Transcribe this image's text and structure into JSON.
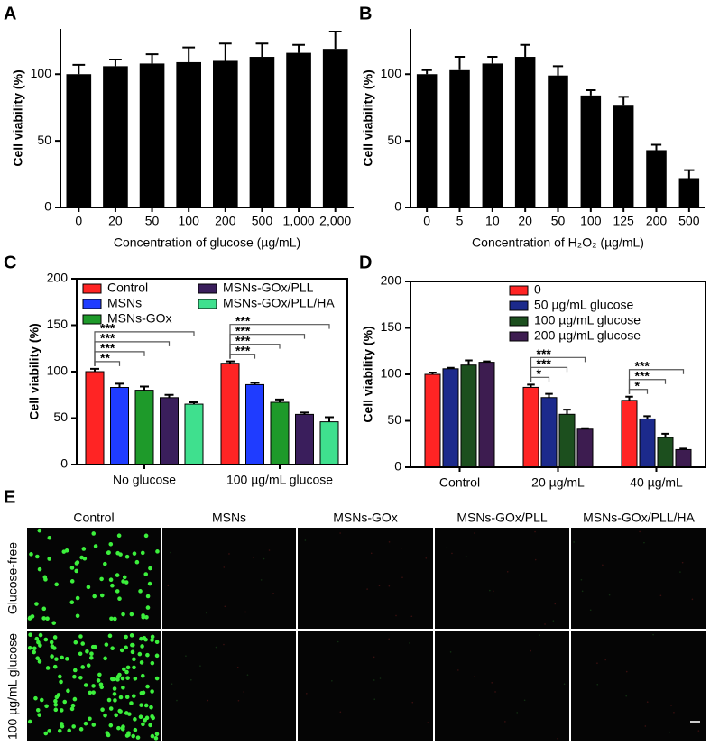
{
  "panels": [
    "A",
    "B",
    "C",
    "D",
    "E"
  ],
  "chart_data": [
    {
      "type": "bar",
      "y_label": "Cell viability (%)",
      "x_label": "Concentration of glucose (µg/mL)",
      "categories": [
        "0",
        "20",
        "50",
        "100",
        "200",
        "500",
        "1,000",
        "2,000"
      ],
      "series": [
        {
          "color": "#000000",
          "values": [
            100,
            106,
            108,
            109,
            110,
            113,
            116,
            119
          ],
          "errors": [
            7,
            5,
            7,
            11,
            13,
            10,
            6,
            13
          ]
        }
      ],
      "ylim": [
        0,
        134
      ],
      "yticks": [
        0,
        50,
        100
      ]
    },
    {
      "type": "bar",
      "y_label": "Cell viability (%)",
      "x_label": "Concentration of H₂O₂ (µg/mL)",
      "categories": [
        "0",
        "5",
        "10",
        "20",
        "50",
        "100",
        "125",
        "200",
        "500"
      ],
      "series": [
        {
          "color": "#000000",
          "values": [
            100,
            103,
            108,
            113,
            99,
            84,
            77,
            43,
            22
          ],
          "errors": [
            3,
            10,
            5,
            9,
            7,
            4,
            6,
            4,
            6
          ]
        }
      ],
      "ylim": [
        0,
        134
      ],
      "yticks": [
        0,
        50,
        100
      ]
    },
    {
      "type": "bar",
      "y_label": "Cell viability (%)",
      "categories": [
        "No glucose",
        "100 µg/mL glucose"
      ],
      "series": [
        {
          "name": "Control",
          "color": "#ff2424",
          "values": [
            100,
            109
          ],
          "errors": [
            3,
            2
          ]
        },
        {
          "name": "MSNs",
          "color": "#1f3cff",
          "values": [
            83,
            86
          ],
          "errors": [
            4,
            2
          ]
        },
        {
          "name": "MSNs-GOx",
          "color": "#1e9a2a",
          "values": [
            80,
            67
          ],
          "errors": [
            4,
            3
          ]
        },
        {
          "name": "MSNs-GOx/PLL",
          "color": "#3a1e5c",
          "values": [
            72,
            54
          ],
          "errors": [
            3,
            2
          ]
        },
        {
          "name": "MSNs-GOx/PLL/HA",
          "color": "#3fe08e",
          "values": [
            65,
            46
          ],
          "errors": [
            2,
            5
          ]
        }
      ],
      "annotations": [
        [
          "**",
          "***",
          "***",
          "***"
        ],
        [
          "***",
          "***",
          "***",
          "***"
        ]
      ],
      "ylim": [
        0,
        200
      ],
      "yticks": [
        0,
        50,
        100,
        150,
        200
      ]
    },
    {
      "type": "bar",
      "y_label": "Cell viability (%)",
      "categories": [
        "Control",
        "20 µg/mL",
        "40 µg/mL"
      ],
      "series": [
        {
          "name": "0",
          "color": "#ff2424",
          "values": [
            100,
            86,
            72
          ],
          "errors": [
            2,
            3,
            4
          ]
        },
        {
          "name": "50 µg/mL glucose",
          "color": "#1c2a8c",
          "values": [
            106,
            75,
            52
          ],
          "errors": [
            1,
            4,
            3
          ]
        },
        {
          "name": "100 µg/mL glucose",
          "color": "#1c4f1e",
          "values": [
            110,
            57,
            32
          ],
          "errors": [
            5,
            5,
            4
          ]
        },
        {
          "name": "200 µg/mL glucose",
          "color": "#3d1c50",
          "values": [
            113,
            41,
            19
          ],
          "errors": [
            1,
            1,
            1
          ]
        }
      ],
      "annotations": [
        [],
        [
          "*",
          "***",
          "***"
        ],
        [
          "*",
          "***",
          "***"
        ]
      ],
      "ylim": [
        0,
        200
      ],
      "yticks": [
        0,
        50,
        100,
        150,
        200
      ]
    }
  ],
  "microscopy": {
    "columns": [
      "Control",
      "MSNs",
      "MSNs-GOx",
      "MSNs-GOx/PLL",
      "MSNs-GOx/PLL/HA"
    ],
    "rows": [
      "Glucose-free",
      "100 µg/mL glucose"
    ]
  }
}
